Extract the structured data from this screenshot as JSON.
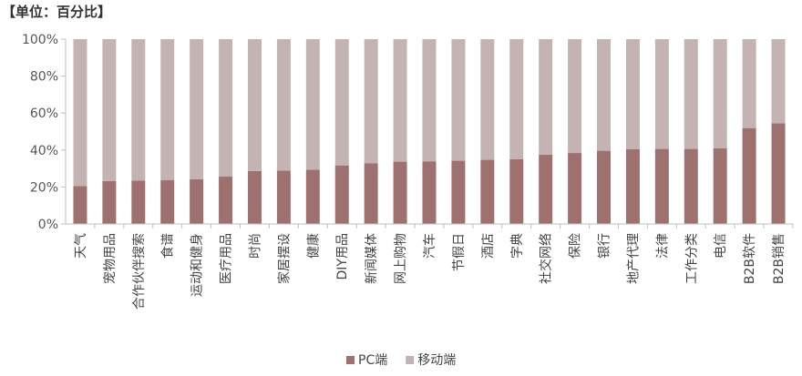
{
  "unit_label": "【单位：百分比】",
  "colors": {
    "pc": "#9e7170",
    "mobile": "#c4b3b3",
    "axis": "#bfbfbf"
  },
  "chart_data": {
    "type": "bar",
    "stacked": true,
    "percent": true,
    "categories": [
      "天气",
      "宠物用品",
      "合作伙伴搜索",
      "食谱",
      "运动和健身",
      "医疗用品",
      "时尚",
      "家居摆设",
      "健康",
      "DIY用品",
      "新闻媒体",
      "网上购物",
      "汽车",
      "节假日",
      "酒店",
      "字典",
      "社交网络",
      "保险",
      "银行",
      "地产代理",
      "法律",
      "工作分类",
      "电信",
      "B2B软件",
      "B2B销售"
    ],
    "series": [
      {
        "name": "PC端",
        "values": [
          20.5,
          23.2,
          23.5,
          23.8,
          24.2,
          25.6,
          28.6,
          28.9,
          29.3,
          31.7,
          32.9,
          33.7,
          33.9,
          34.2,
          34.7,
          35.0,
          37.5,
          38.4,
          39.6,
          40.4,
          40.6,
          40.6,
          40.9,
          51.9,
          54.5
        ]
      },
      {
        "name": "移动端",
        "values": [
          79.5,
          76.8,
          76.5,
          76.2,
          75.8,
          74.4,
          71.4,
          71.1,
          70.7,
          68.3,
          67.1,
          66.3,
          66.1,
          65.8,
          65.3,
          65.0,
          62.5,
          61.6,
          60.4,
          59.6,
          59.4,
          59.4,
          59.1,
          48.1,
          45.5
        ]
      }
    ],
    "yticks": [
      "0%",
      "20%",
      "40%",
      "60%",
      "80%",
      "100%"
    ],
    "ylim": [
      0,
      100
    ],
    "legend_position": "bottom",
    "grid": false
  }
}
